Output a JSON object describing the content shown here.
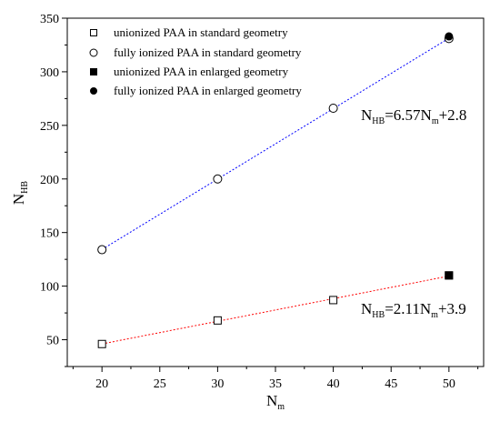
{
  "chart_data": {
    "type": "scatter",
    "xlabel": "N",
    "xlabel_sub": "m",
    "ylabel": "N",
    "ylabel_sub": "HB",
    "xlim": [
      17,
      53
    ],
    "ylim": [
      25,
      350
    ],
    "xticks": [
      20,
      25,
      30,
      35,
      40,
      45,
      50
    ],
    "yticks": [
      50,
      100,
      150,
      200,
      250,
      300,
      350
    ],
    "x_minor_step": 2.5,
    "y_minor_step": 25,
    "grid": false,
    "legend_position": "top-left",
    "series": [
      {
        "name": "unionized PAA in standard geometry",
        "marker": "open-square",
        "x": [
          20,
          30,
          40,
          50
        ],
        "y": [
          46,
          68,
          87,
          110
        ]
      },
      {
        "name": "fully ionized PAA in standard geometry",
        "marker": "open-circle",
        "x": [
          20,
          30,
          40,
          50
        ],
        "y": [
          134,
          200,
          266,
          331
        ]
      },
      {
        "name": "unionized PAA in enlarged geometry",
        "marker": "filled-square",
        "x": [
          50
        ],
        "y": [
          110
        ]
      },
      {
        "name": "fully ionized PAA in enlarged geometry",
        "marker": "filled-circle",
        "x": [
          50
        ],
        "y": [
          333
        ]
      }
    ],
    "fits": [
      {
        "color": "#0000ff",
        "slope": 6.57,
        "intercept": 2.8,
        "x_range": [
          20,
          50
        ],
        "label_parts": [
          "N",
          "HB",
          "=6.57N",
          "m",
          "+2.8"
        ]
      },
      {
        "color": "#ff0000",
        "slope": 2.11,
        "intercept": 3.9,
        "x_range": [
          20,
          50
        ],
        "label_parts": [
          "N",
          "HB",
          "=2.11N",
          "m",
          "+3.9"
        ]
      }
    ]
  }
}
